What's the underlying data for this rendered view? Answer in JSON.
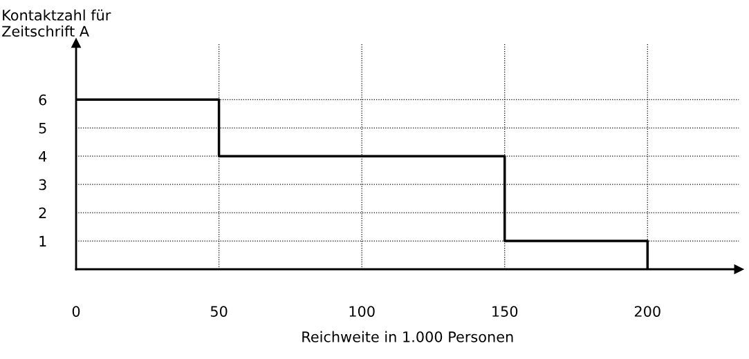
{
  "chart_data": {
    "type": "step",
    "xlabel": "Reichweite in 1.000 Personen",
    "ylabel": "Kontaktzahl für\nZeitschrift A",
    "x": [
      0,
      50,
      150,
      200
    ],
    "values": [
      6,
      4,
      1,
      0
    ],
    "color": "#000000",
    "xlim": [
      0,
      232
    ],
    "ylim": [
      0,
      8
    ],
    "xticks": [
      0,
      50,
      100,
      150,
      200
    ],
    "yticks": [
      1,
      2,
      3,
      4,
      5,
      6
    ],
    "grid": true,
    "line_style": "solid",
    "marker": "none"
  }
}
